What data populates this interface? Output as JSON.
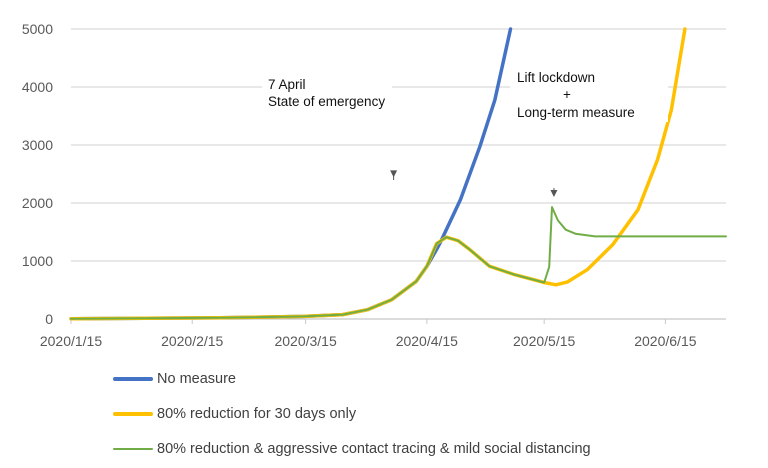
{
  "chart_data": {
    "type": "line",
    "title": "",
    "xlabel": "",
    "ylabel": "",
    "x_unit": "days since 2020/1/15",
    "xlim": [
      0,
      167.5
    ],
    "ylim": [
      0,
      5000
    ],
    "yticks": [
      "0",
      "1000",
      "2000",
      "3000",
      "4000",
      "5000"
    ],
    "ytick_values": [
      0,
      1000,
      2000,
      3000,
      4000,
      5000
    ],
    "xticks": [
      "2020/1/15",
      "2020/2/15",
      "2020/3/15",
      "2020/4/15",
      "2020/5/15",
      "2020/6/15"
    ],
    "xtick_values": [
      0,
      31,
      60,
      91,
      121,
      152
    ],
    "grid": "horizontal",
    "legend_position": "bottom",
    "series": [
      {
        "name": "No measure",
        "color": "#4472C4",
        "x": [
          0,
          38,
          59.5,
          69.5,
          75.8,
          82,
          88.3,
          91,
          93.5,
          94.6,
          99.6,
          104.6,
          108.4,
          112.4
        ],
        "y": [
          5,
          20,
          45,
          75,
          160,
          333,
          650,
          910,
          1200,
          1340,
          2060,
          2980,
          3780,
          5000
        ]
      },
      {
        "name": "80% reduction for 30 days only",
        "color": "#FFC000",
        "x": [
          0,
          38,
          59.5,
          69.5,
          75.8,
          82,
          88.3,
          91,
          93.5,
          96,
          99,
          102,
          107,
          113.4,
          121,
          124,
          127,
          132,
          138.5,
          145,
          150,
          153.5,
          157
        ],
        "y": [
          5,
          20,
          45,
          75,
          160,
          333,
          650,
          910,
          1300,
          1410,
          1350,
          1195,
          910,
          765,
          630,
          590,
          640,
          850,
          1280,
          1885,
          2750,
          3600,
          5000
        ]
      },
      {
        "name": "80% reduction & aggressive contact tracing & mild social distancing",
        "color": "#70AD47",
        "x": [
          0,
          38,
          59.5,
          69.5,
          75.8,
          82,
          88.3,
          91,
          93.5,
          96,
          99,
          102,
          107,
          113.4,
          121,
          122.3,
          123,
          124.5,
          126.5,
          129,
          134,
          140,
          167.5
        ],
        "y": [
          5,
          20,
          45,
          75,
          160,
          333,
          650,
          910,
          1300,
          1410,
          1350,
          1195,
          910,
          765,
          630,
          900,
          1930,
          1700,
          1540,
          1470,
          1425,
          1425,
          1425
        ]
      }
    ],
    "annotations": [
      {
        "lines": [
          "7 April",
          "State of emergency"
        ],
        "arrow_x": 82.5,
        "arrow_to_y": 1200
      },
      {
        "lines": [
          "Lift lockdown",
          "+",
          "Long-term measure"
        ],
        "arrow_x": 123.5,
        "arrow_to_y": 1930
      }
    ]
  }
}
